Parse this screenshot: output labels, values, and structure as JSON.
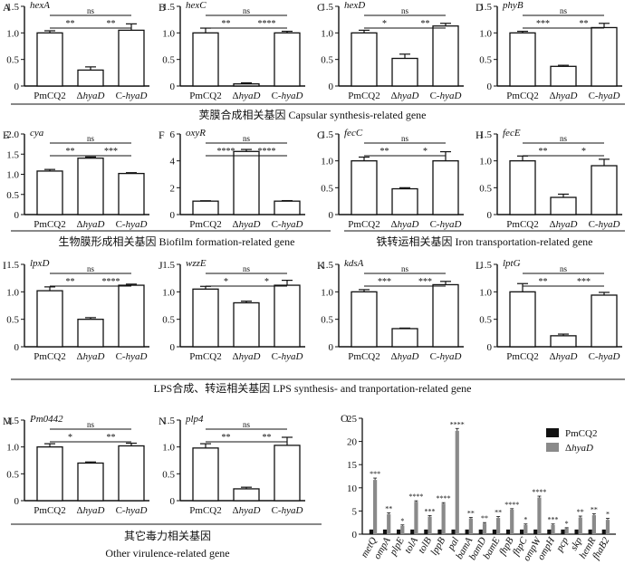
{
  "chart_data": [
    {
      "panel": "A",
      "title": "hexA",
      "type": "bar",
      "categories": [
        "PmCQ2",
        "ΔhyaD",
        "C-hyaD"
      ],
      "values": [
        1.0,
        0.3,
        1.05
      ],
      "errors": [
        0.04,
        0.06,
        0.12
      ],
      "ylim": [
        0,
        1.5
      ],
      "yticks": [
        "0",
        "0.5",
        "1.0",
        "1.5"
      ],
      "brackets": [
        {
          "from": 0,
          "to": 1,
          "label": "**"
        },
        {
          "from": 1,
          "to": 2,
          "label": "**"
        },
        {
          "from": 0,
          "to": 2,
          "label": "ns"
        }
      ]
    },
    {
      "panel": "B",
      "title": "hexC",
      "type": "bar",
      "categories": [
        "PmCQ2",
        "ΔhyaD",
        "C-hyaD"
      ],
      "values": [
        1.0,
        0.04,
        1.0
      ],
      "errors": [
        0.09,
        0.02,
        0.03
      ],
      "ylim": [
        0,
        1.5
      ],
      "yticks": [
        "0",
        "0.5",
        "1.0",
        "1.5"
      ],
      "brackets": [
        {
          "from": 0,
          "to": 1,
          "label": "**"
        },
        {
          "from": 1,
          "to": 2,
          "label": "****"
        },
        {
          "from": 0,
          "to": 2,
          "label": "ns"
        }
      ]
    },
    {
      "panel": "C",
      "title": "hexD",
      "type": "bar",
      "categories": [
        "PmCQ2",
        "ΔhyaD",
        "C-hyaD"
      ],
      "values": [
        1.0,
        0.52,
        1.13
      ],
      "errors": [
        0.05,
        0.08,
        0.05
      ],
      "ylim": [
        0,
        1.5
      ],
      "yticks": [
        "0",
        "0.5",
        "1.0",
        "1.5"
      ],
      "brackets": [
        {
          "from": 0,
          "to": 1,
          "label": "*"
        },
        {
          "from": 1,
          "to": 2,
          "label": "**"
        },
        {
          "from": 0,
          "to": 2,
          "label": "ns"
        }
      ]
    },
    {
      "panel": "D",
      "title": "phyB",
      "type": "bar",
      "categories": [
        "PmCQ2",
        "ΔhyaD",
        "C-hyaD"
      ],
      "values": [
        1.0,
        0.37,
        1.1
      ],
      "errors": [
        0.03,
        0.02,
        0.08
      ],
      "ylim": [
        0,
        1.5
      ],
      "yticks": [
        "0",
        "0.5",
        "1.0",
        "1.5"
      ],
      "brackets": [
        {
          "from": 0,
          "to": 1,
          "label": "***"
        },
        {
          "from": 1,
          "to": 2,
          "label": "**"
        },
        {
          "from": 0,
          "to": 2,
          "label": "ns"
        }
      ]
    },
    {
      "panel": "E",
      "title": "cya",
      "type": "bar",
      "categories": [
        "PmCQ2",
        "ΔhyaD",
        "C-hyaD"
      ],
      "values": [
        1.08,
        1.4,
        1.02
      ],
      "errors": [
        0.04,
        0.03,
        0.02
      ],
      "ylim": [
        0,
        2.0
      ],
      "yticks": [
        "0",
        "0.5",
        "1.0",
        "1.5",
        "2.0"
      ],
      "brackets": [
        {
          "from": 0,
          "to": 1,
          "label": "**"
        },
        {
          "from": 1,
          "to": 2,
          "label": "***"
        },
        {
          "from": 0,
          "to": 2,
          "label": "ns"
        }
      ]
    },
    {
      "panel": "F",
      "title": "oxyR",
      "type": "bar",
      "categories": [
        "PmCQ2",
        "ΔhyaD",
        "C-hyaD"
      ],
      "values": [
        1.0,
        4.7,
        1.0
      ],
      "errors": [
        0.03,
        0.15,
        0.04
      ],
      "ylim": [
        0,
        6
      ],
      "yticks": [
        "0",
        "2",
        "4",
        "6"
      ],
      "brackets": [
        {
          "from": 0,
          "to": 1,
          "label": "****"
        },
        {
          "from": 1,
          "to": 2,
          "label": "****"
        },
        {
          "from": 0,
          "to": 2,
          "label": "ns"
        }
      ]
    },
    {
      "panel": "G",
      "title": "fecC",
      "type": "bar",
      "categories": [
        "PmCQ2",
        "ΔhyaD",
        "C-hyaD"
      ],
      "values": [
        1.0,
        0.48,
        1.0
      ],
      "errors": [
        0.07,
        0.02,
        0.17
      ],
      "ylim": [
        0,
        1.5
      ],
      "yticks": [
        "0",
        "0.5",
        "1.0",
        "1.5"
      ],
      "brackets": [
        {
          "from": 0,
          "to": 1,
          "label": "**"
        },
        {
          "from": 1,
          "to": 2,
          "label": "*"
        },
        {
          "from": 0,
          "to": 2,
          "label": "ns"
        }
      ]
    },
    {
      "panel": "H",
      "title": "fecE",
      "type": "bar",
      "categories": [
        "PmCQ2",
        "ΔhyaD",
        "C-hyaD"
      ],
      "values": [
        1.0,
        0.32,
        0.91
      ],
      "errors": [
        0.09,
        0.06,
        0.12
      ],
      "ylim": [
        0,
        1.5
      ],
      "yticks": [
        "0",
        "0.5",
        "1.0",
        "1.5"
      ],
      "brackets": [
        {
          "from": 0,
          "to": 1,
          "label": "**"
        },
        {
          "from": 1,
          "to": 2,
          "label": "*"
        },
        {
          "from": 0,
          "to": 2,
          "label": "ns"
        }
      ]
    },
    {
      "panel": "I",
      "title": "lpxD",
      "type": "bar",
      "categories": [
        "PmCQ2",
        "ΔhyaD",
        "C-hyaD"
      ],
      "values": [
        1.02,
        0.5,
        1.12
      ],
      "errors": [
        0.07,
        0.03,
        0.02
      ],
      "ylim": [
        0,
        1.5
      ],
      "yticks": [
        "0",
        "0.5",
        "1.0",
        "1.5"
      ],
      "brackets": [
        {
          "from": 0,
          "to": 1,
          "label": "**"
        },
        {
          "from": 1,
          "to": 2,
          "label": "****"
        },
        {
          "from": 0,
          "to": 2,
          "label": "ns"
        }
      ]
    },
    {
      "panel": "J",
      "title": "wzzE",
      "type": "bar",
      "categories": [
        "PmCQ2",
        "ΔhyaD",
        "C-hyaD"
      ],
      "values": [
        1.05,
        0.8,
        1.12
      ],
      "errors": [
        0.05,
        0.03,
        0.09
      ],
      "ylim": [
        0,
        1.5
      ],
      "yticks": [
        "0",
        "0.5",
        "1.0",
        "1.5"
      ],
      "brackets": [
        {
          "from": 0,
          "to": 1,
          "label": "*"
        },
        {
          "from": 1,
          "to": 2,
          "label": "*"
        },
        {
          "from": 0,
          "to": 2,
          "label": "ns"
        }
      ]
    },
    {
      "panel": "K",
      "title": "kdsA",
      "type": "bar",
      "categories": [
        "PmCQ2",
        "ΔhyaD",
        "C-hyaD"
      ],
      "values": [
        1.0,
        0.33,
        1.13
      ],
      "errors": [
        0.04,
        0.01,
        0.06
      ],
      "ylim": [
        0,
        1.5
      ],
      "yticks": [
        "0",
        "0.5",
        "1.0",
        "1.5"
      ],
      "brackets": [
        {
          "from": 0,
          "to": 1,
          "label": "***"
        },
        {
          "from": 1,
          "to": 2,
          "label": "***"
        },
        {
          "from": 0,
          "to": 2,
          "label": "ns"
        }
      ]
    },
    {
      "panel": "L",
      "title": "lptG",
      "type": "bar",
      "categories": [
        "PmCQ2",
        "ΔhyaD",
        "C-hyaD"
      ],
      "values": [
        1.0,
        0.2,
        0.94
      ],
      "errors": [
        0.15,
        0.03,
        0.05
      ],
      "ylim": [
        0,
        1.5
      ],
      "yticks": [
        "0",
        "0.5",
        "1.0",
        "1.5"
      ],
      "brackets": [
        {
          "from": 0,
          "to": 1,
          "label": "**"
        },
        {
          "from": 1,
          "to": 2,
          "label": "***"
        },
        {
          "from": 0,
          "to": 2,
          "label": "ns"
        }
      ]
    },
    {
      "panel": "M",
      "title": "Pm0442",
      "type": "bar",
      "categories": [
        "PmCQ2",
        "ΔhyaD",
        "C-hyaD"
      ],
      "values": [
        1.0,
        0.7,
        1.02
      ],
      "errors": [
        0.06,
        0.02,
        0.05
      ],
      "ylim": [
        0,
        1.5
      ],
      "yticks": [
        "0",
        "0.5",
        "1.0",
        "1.5"
      ],
      "brackets": [
        {
          "from": 0,
          "to": 1,
          "label": "*"
        },
        {
          "from": 1,
          "to": 2,
          "label": "**"
        },
        {
          "from": 0,
          "to": 2,
          "label": "ns"
        }
      ]
    },
    {
      "panel": "N",
      "title": "plp4",
      "type": "bar",
      "categories": [
        "PmCQ2",
        "ΔhyaD",
        "C-hyaD"
      ],
      "values": [
        0.98,
        0.22,
        1.03
      ],
      "errors": [
        0.08,
        0.03,
        0.15
      ],
      "ylim": [
        0,
        1.5
      ],
      "yticks": [
        "0",
        "0.5",
        "1.0",
        "1.5"
      ],
      "brackets": [
        {
          "from": 0,
          "to": 1,
          "label": "**"
        },
        {
          "from": 1,
          "to": 2,
          "label": "**"
        },
        {
          "from": 0,
          "to": 2,
          "label": "ns"
        }
      ]
    },
    {
      "panel": "O",
      "title": "",
      "type": "bar",
      "ylim": [
        0,
        25
      ],
      "yticks": [
        "0",
        "5",
        "10",
        "15",
        "20",
        "25"
      ],
      "categories": [
        "metQ",
        "ompA",
        "plpE",
        "tolA",
        "tolB",
        "lppB",
        "pal",
        "bamA",
        "bamD",
        "bamE",
        "fhpB",
        "fhpC",
        "ompW",
        "ompH",
        "pcp",
        "skp",
        "hemR",
        "fhaB2"
      ],
      "series": [
        {
          "name": "PmCQ2",
          "color": "#111111",
          "values": [
            1,
            1,
            1,
            1,
            1,
            1,
            1,
            1,
            1,
            1,
            1,
            1,
            1,
            1,
            1,
            1,
            1,
            1
          ]
        },
        {
          "name": "ΔhyaD",
          "color": "#8a8a8a",
          "values": [
            11.7,
            4.3,
            1.8,
            7.0,
            3.8,
            6.6,
            22.3,
            3.4,
            2.3,
            3.5,
            5.3,
            2.0,
            7.9,
            2.0,
            1.3,
            3.6,
            4.1,
            3.1
          ],
          "errors": [
            0.4,
            0.3,
            0.2,
            0.2,
            0.2,
            0.2,
            0.5,
            0.2,
            0.2,
            0.3,
            0.2,
            0.2,
            0.3,
            0.2,
            0.1,
            0.3,
            0.3,
            0.3
          ]
        }
      ],
      "sig": [
        "***",
        "**",
        "*",
        "****",
        "***",
        "****",
        "****",
        "**",
        "**",
        "**",
        "****",
        "*",
        "****",
        "***",
        "*",
        "**",
        "**",
        "*"
      ]
    }
  ],
  "captions": {
    "capsular_cn": "荚膜合成相关基因",
    "capsular_en": "Capsular synthesis-related gene",
    "biofilm_cn": "生物膜形成相关基因",
    "biofilm_en": "Biofilm formation-related gene",
    "iron_cn": "铁转运相关基因",
    "iron_en": "Iron transportation-related gene",
    "lps_cn": "LPS合成、转运相关基因",
    "lps_en": "LPS synthesis- and tranportation-related gene",
    "other_cn": "其它毒力相关基因",
    "other_en": "Other virulence-related gene"
  }
}
